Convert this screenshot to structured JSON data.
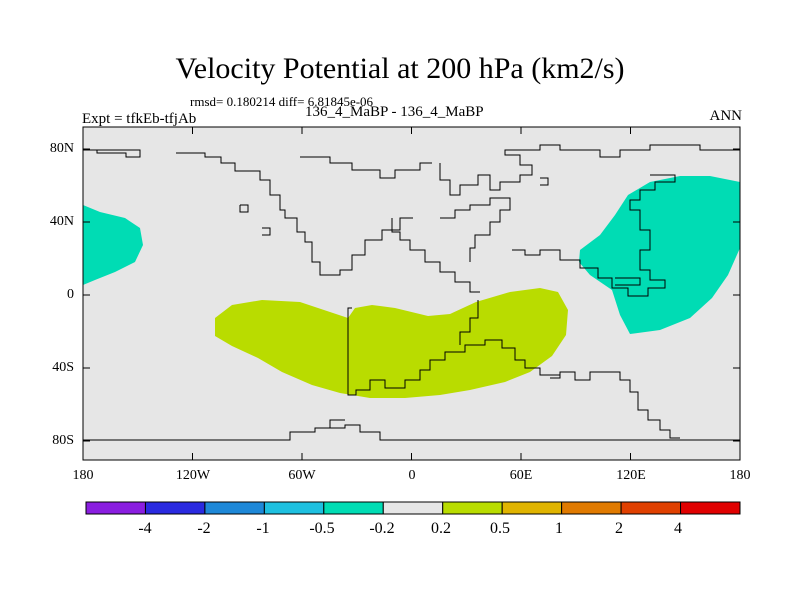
{
  "title": "Velocity Potential at 200 hPa (km2/s)",
  "stats": "rmsd= 0.180214 diff= 6.81845e-06",
  "left_label": "Expt = tfkEb-tfjAb",
  "center_label": "136_4_MaBP - 136_4_MaBP",
  "right_label": "ANN",
  "lat_labels": [
    "80N",
    "40N",
    "0",
    "40S",
    "80S"
  ],
  "lon_labels": [
    "180",
    "120W",
    "60W",
    "0",
    "60E",
    "120E",
    "180"
  ],
  "colorbar": {
    "labels": [
      "-4",
      "-2",
      "-1",
      "-0.5",
      "-0.2",
      "0.2",
      "0.5",
      "1",
      "2",
      "4"
    ],
    "colors": [
      "#8a1ee0",
      "#2a2ae0",
      "#1e88d8",
      "#1ec0e0",
      "#00dcb4",
      "#e6e6e6",
      "#b9dc00",
      "#e0b400",
      "#e07a00",
      "#e04000",
      "#e00000"
    ]
  },
  "map_colors": {
    "background": "#e6e6e6",
    "positive_region": "#b9dc00",
    "negative_region": "#00dcb4",
    "coastline": "#000000"
  }
}
